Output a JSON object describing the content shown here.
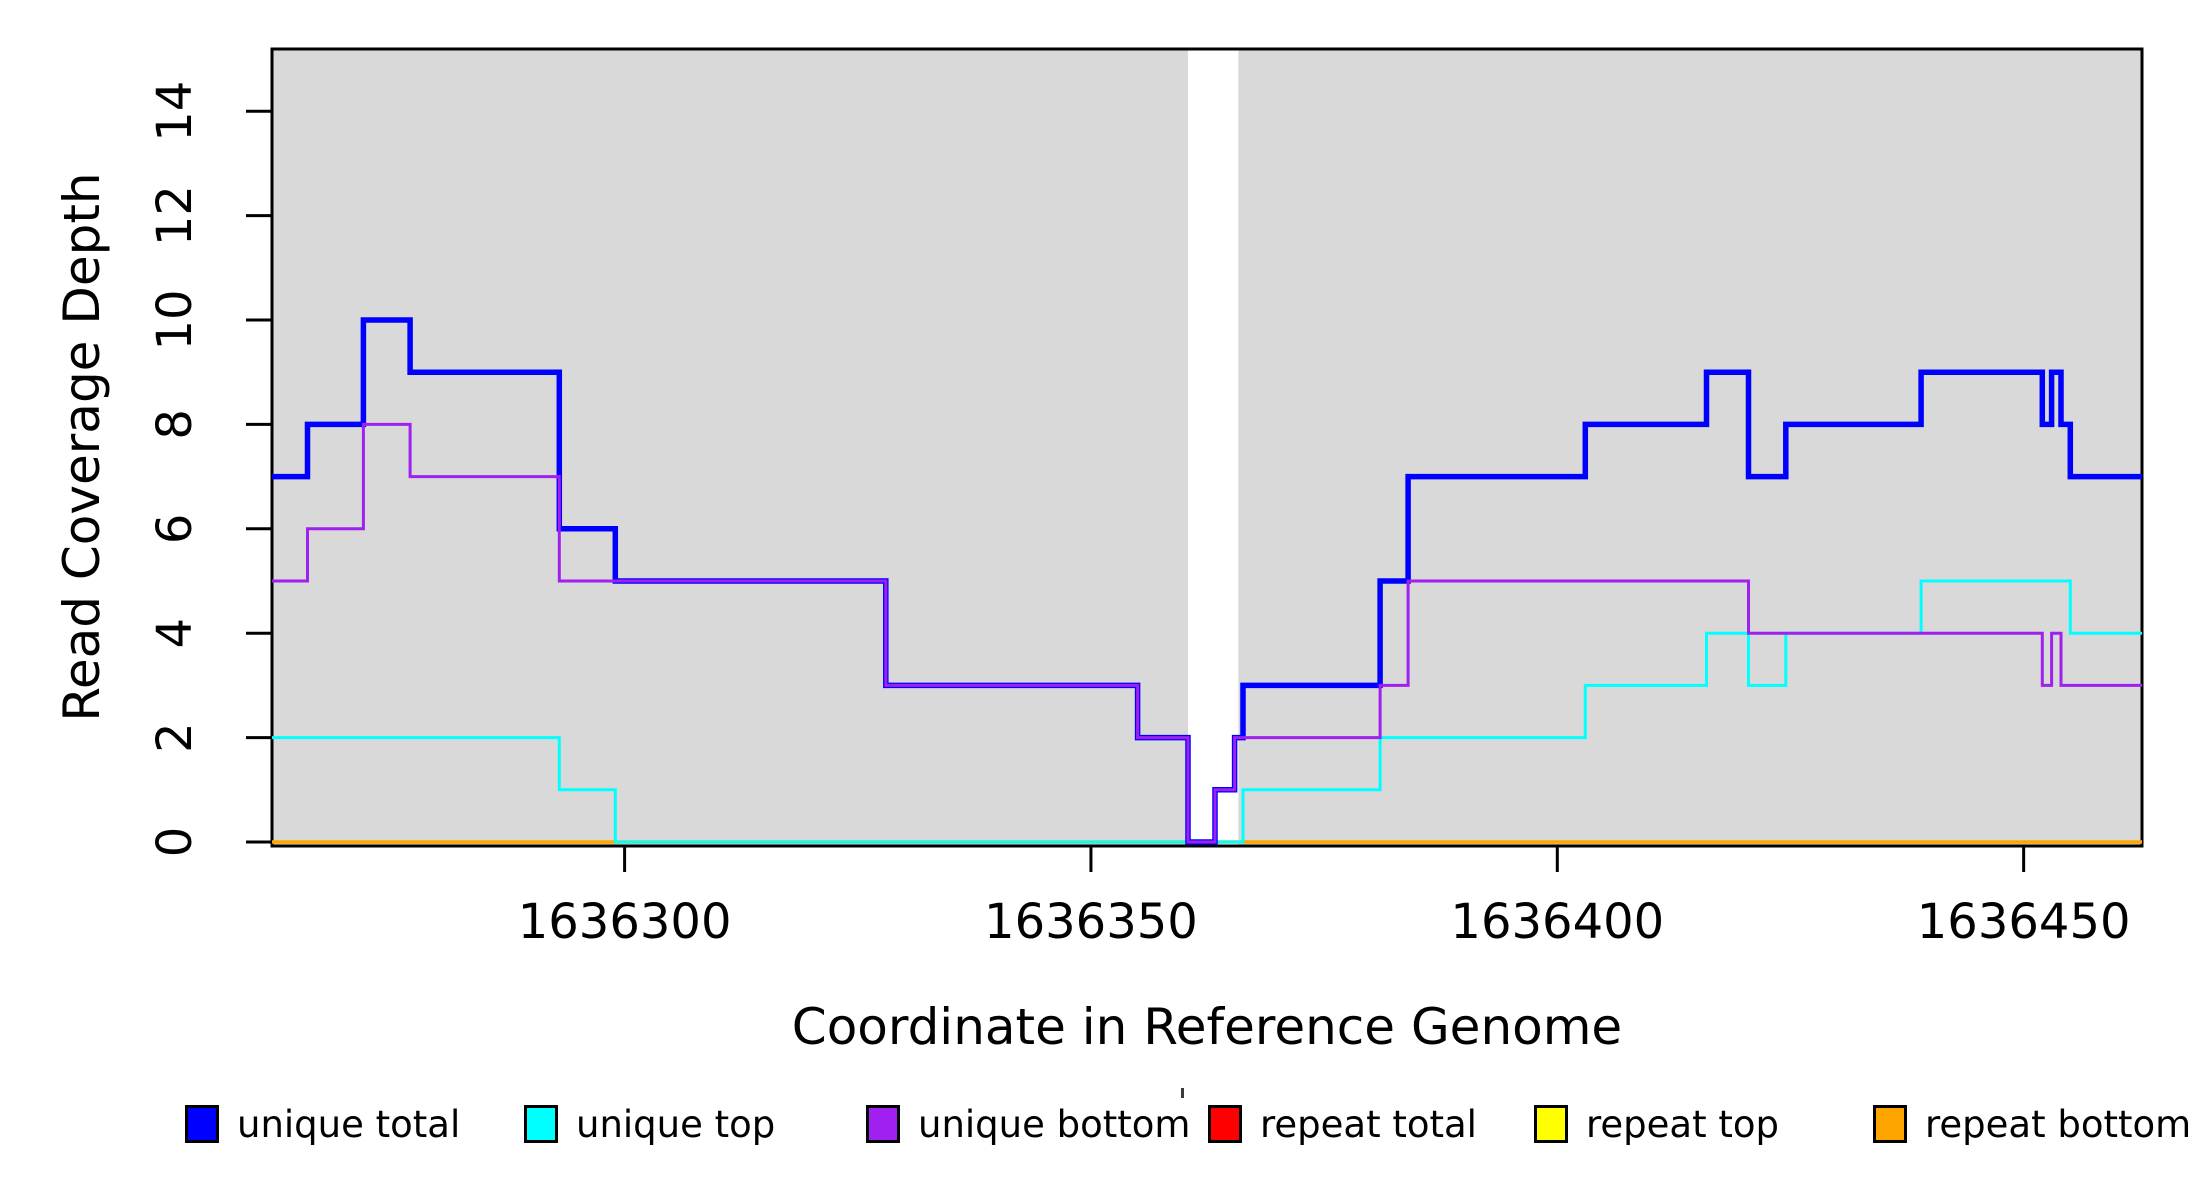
{
  "chart_data": {
    "type": "line",
    "subtype": "step",
    "title": "",
    "xlabel": "Coordinate in Reference Genome",
    "ylabel": "Read Coverage Depth",
    "xlim": [
      1636262.2,
      1636462.7
    ],
    "ylim": [
      0,
      15.2
    ],
    "x_ticks": [
      1636300,
      1636350,
      1636400,
      1636450
    ],
    "y_ticks": [
      0,
      2,
      4,
      6,
      8,
      10,
      12,
      14
    ],
    "grid": false,
    "plot_background_color": "#D9D9D9",
    "background_regions": [
      {
        "from": 1636262.2,
        "to": 1636360.4,
        "color": "#D9D9D9"
      },
      {
        "from": 1636365.8,
        "to": 1636462.7,
        "color": "#D9D9D9"
      }
    ],
    "gap_band": {
      "from": 1636360.4,
      "to": 1636365.8,
      "color": "#FFFFFF"
    },
    "series": [
      {
        "name": "repeat total",
        "color": "#FF0000",
        "width": 3,
        "steps": [
          [
            1636262.2,
            0
          ]
        ]
      },
      {
        "name": "repeat top",
        "color": "#FFFF00",
        "width": 3,
        "steps": [
          [
            1636262.2,
            0
          ]
        ]
      },
      {
        "name": "repeat bottom",
        "color": "#FFA500",
        "width": 3.5,
        "steps": [
          [
            1636262.2,
            0
          ]
        ]
      },
      {
        "name": "unique top",
        "color": "#00FFFF",
        "width": 3,
        "steps": [
          [
            1636262.2,
            2
          ],
          [
            1636293,
            1
          ],
          [
            1636299,
            0
          ],
          [
            1636366.3,
            1
          ],
          [
            1636381,
            2
          ],
          [
            1636403,
            3
          ],
          [
            1636416,
            4
          ],
          [
            1636420.5,
            3
          ],
          [
            1636424.5,
            4
          ],
          [
            1636439,
            5
          ],
          [
            1636455,
            4
          ]
        ]
      },
      {
        "name": "unique total",
        "color": "#0000FF",
        "width": 5.5,
        "steps": [
          [
            1636262.2,
            7
          ],
          [
            1636266,
            8
          ],
          [
            1636272,
            10
          ],
          [
            1636277,
            9
          ],
          [
            1636293,
            6
          ],
          [
            1636299,
            5
          ],
          [
            1636328,
            3
          ],
          [
            1636355,
            2
          ],
          [
            1636360.4,
            0
          ],
          [
            1636363.3,
            1
          ],
          [
            1636365.4,
            2
          ],
          [
            1636366.3,
            3
          ],
          [
            1636381,
            5
          ],
          [
            1636384,
            7
          ],
          [
            1636403,
            8
          ],
          [
            1636416,
            9
          ],
          [
            1636420.5,
            7
          ],
          [
            1636424.5,
            8
          ],
          [
            1636439,
            9
          ],
          [
            1636452,
            8
          ],
          [
            1636453,
            9
          ],
          [
            1636454,
            8
          ],
          [
            1636455,
            7
          ]
        ]
      },
      {
        "name": "unique bottom",
        "color": "#A020F0",
        "width": 3,
        "steps": [
          [
            1636262.2,
            5
          ],
          [
            1636266,
            6
          ],
          [
            1636272,
            8
          ],
          [
            1636277,
            7
          ],
          [
            1636293,
            5
          ],
          [
            1636328,
            3
          ],
          [
            1636355,
            2
          ],
          [
            1636360.4,
            0
          ],
          [
            1636363.3,
            1
          ],
          [
            1636365.4,
            2
          ],
          [
            1636381,
            3
          ],
          [
            1636384,
            5
          ],
          [
            1636420.5,
            4
          ],
          [
            1636452,
            3
          ],
          [
            1636453,
            4
          ],
          [
            1636454,
            3
          ]
        ]
      }
    ],
    "legend": {
      "position": "bottom",
      "entries": [
        {
          "label": "unique total",
          "color": "#0000FF"
        },
        {
          "label": "unique top",
          "color": "#00FFFF"
        },
        {
          "label": "unique bottom",
          "color": "#A020F0"
        },
        {
          "label": "repeat total",
          "color": "#FF0000"
        },
        {
          "label": "repeat top",
          "color": "#FFFF00"
        },
        {
          "label": "repeat bottom",
          "color": "#FFA500"
        }
      ]
    },
    "stray_mark": {
      "x": 1181,
      "y": 1088
    }
  }
}
